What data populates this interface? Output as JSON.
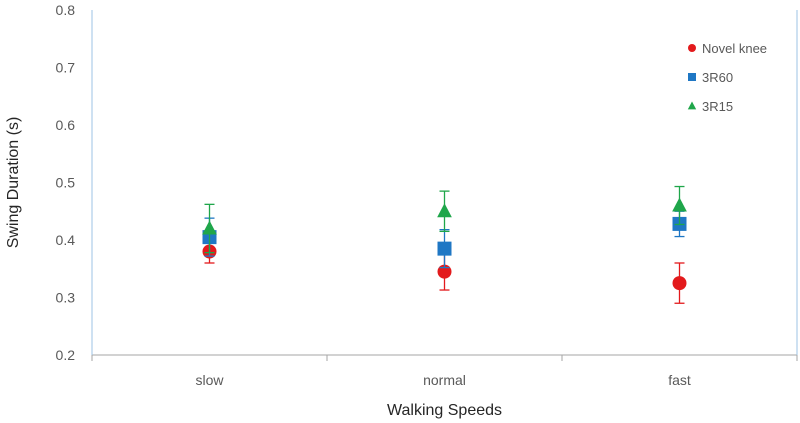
{
  "chart_data": {
    "type": "scatter",
    "title": "",
    "xlabel": "Walking Speeds",
    "ylabel": "Swing Duration (s)",
    "categories": [
      "slow",
      "normal",
      "fast"
    ],
    "ylim": [
      0.2,
      0.8
    ],
    "yticks": [
      "0.2",
      "0.3",
      "0.4",
      "0.5",
      "0.6",
      "0.7",
      "0.8"
    ],
    "grid": false,
    "legend": "top-right",
    "series": [
      {
        "name": "Novel knee",
        "marker": "circle",
        "color": "#e31a1c",
        "values": [
          0.38,
          0.345,
          0.325
        ],
        "errors": [
          0.02,
          0.032,
          0.035
        ]
      },
      {
        "name": "3R60",
        "marker": "square",
        "color": "#1f77c4",
        "values": [
          0.405,
          0.385,
          0.428
        ],
        "errors": [
          0.033,
          0.033,
          0.022
        ]
      },
      {
        "name": "3R15",
        "marker": "triangle",
        "color": "#1fa64a",
        "values": [
          0.42,
          0.45,
          0.46
        ],
        "errors": [
          0.042,
          0.035,
          0.033
        ]
      }
    ]
  }
}
